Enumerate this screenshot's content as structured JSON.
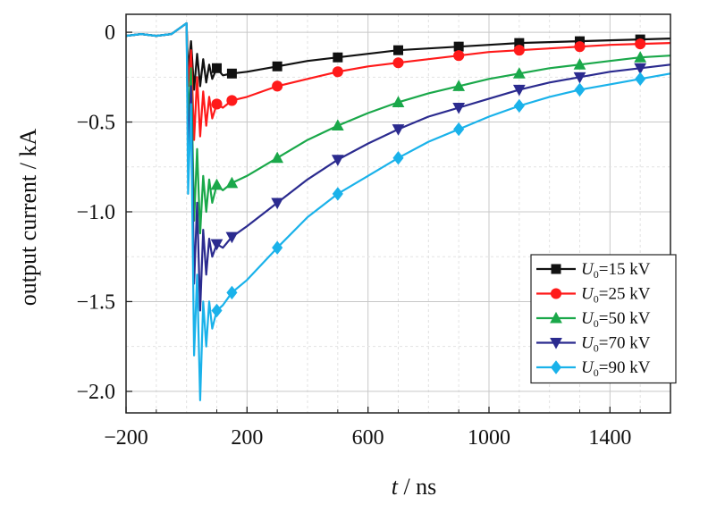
{
  "chart_data": {
    "type": "line",
    "xlabel": {
      "italic": "t",
      "rest": " / ns"
    },
    "ylabel": "output current / kA",
    "xlim": [
      -200,
      1600
    ],
    "ylim": [
      -2.12,
      0.1
    ],
    "x_ticks": [
      -200,
      200,
      600,
      1000,
      1400
    ],
    "x_tick_labels": [
      "−200",
      "200",
      "600",
      "1000",
      "1400"
    ],
    "y_ticks": [
      0,
      -0.5,
      -1.0,
      -1.5,
      -2.0
    ],
    "y_tick_labels": [
      "0",
      "−0.5",
      "−1.0",
      "−1.5",
      "−2.0"
    ],
    "grid": true,
    "legend_position": "bottom-right",
    "series": [
      {
        "name": "U0=15 kV",
        "legend_var": "U",
        "legend_sub": "0",
        "legend_rest": "=15 kV",
        "color": "#111111",
        "marker": "square",
        "x": [
          -200,
          -150,
          -100,
          -50,
          0,
          5,
          15,
          25,
          35,
          45,
          55,
          65,
          75,
          85,
          100,
          120,
          150,
          200,
          300,
          400,
          500,
          600,
          700,
          800,
          900,
          1000,
          1100,
          1200,
          1300,
          1400,
          1500,
          1600
        ],
        "y": [
          -0.02,
          -0.01,
          -0.02,
          -0.01,
          0.05,
          -0.22,
          -0.05,
          -0.32,
          -0.12,
          -0.3,
          -0.15,
          -0.28,
          -0.18,
          -0.26,
          -0.2,
          -0.24,
          -0.23,
          -0.22,
          -0.19,
          -0.16,
          -0.14,
          -0.12,
          -0.1,
          -0.09,
          -0.08,
          -0.07,
          -0.06,
          -0.055,
          -0.05,
          -0.045,
          -0.04,
          -0.035
        ]
      },
      {
        "name": "U0=25 kV",
        "legend_var": "U",
        "legend_sub": "0",
        "legend_rest": "=25 kV",
        "color": "#ff1a1a",
        "marker": "circle",
        "x": [
          -200,
          -150,
          -100,
          -50,
          0,
          5,
          15,
          25,
          35,
          45,
          55,
          65,
          75,
          85,
          100,
          120,
          150,
          200,
          300,
          400,
          500,
          600,
          700,
          800,
          900,
          1000,
          1100,
          1200,
          1300,
          1400,
          1500,
          1600
        ],
        "y": [
          -0.02,
          -0.01,
          -0.02,
          -0.01,
          0.05,
          -0.3,
          -0.1,
          -0.6,
          -0.25,
          -0.58,
          -0.33,
          -0.52,
          -0.36,
          -0.48,
          -0.4,
          -0.42,
          -0.38,
          -0.36,
          -0.3,
          -0.26,
          -0.22,
          -0.19,
          -0.17,
          -0.15,
          -0.13,
          -0.11,
          -0.1,
          -0.09,
          -0.08,
          -0.07,
          -0.065,
          -0.06
        ]
      },
      {
        "name": "U0=50 kV",
        "legend_var": "U",
        "legend_sub": "0",
        "legend_rest": "=50 kV",
        "color": "#1aa84a",
        "marker": "triangle-up",
        "x": [
          -200,
          -150,
          -100,
          -50,
          0,
          5,
          15,
          25,
          35,
          45,
          55,
          65,
          75,
          85,
          100,
          120,
          150,
          200,
          300,
          400,
          500,
          600,
          700,
          800,
          900,
          1000,
          1100,
          1200,
          1300,
          1400,
          1500,
          1600
        ],
        "y": [
          -0.02,
          -0.01,
          -0.02,
          -0.01,
          0.05,
          -0.5,
          -0.2,
          -1.05,
          -0.65,
          -1.12,
          -0.8,
          -1.0,
          -0.82,
          -0.95,
          -0.85,
          -0.88,
          -0.84,
          -0.8,
          -0.7,
          -0.6,
          -0.52,
          -0.45,
          -0.39,
          -0.34,
          -0.3,
          -0.26,
          -0.23,
          -0.2,
          -0.18,
          -0.16,
          -0.14,
          -0.13
        ]
      },
      {
        "name": "U0=70 kV",
        "legend_var": "U",
        "legend_sub": "0",
        "legend_rest": "=70 kV",
        "color": "#2b2b8f",
        "marker": "triangle-down",
        "x": [
          -200,
          -150,
          -100,
          -50,
          0,
          5,
          15,
          25,
          35,
          45,
          55,
          65,
          75,
          85,
          100,
          120,
          150,
          200,
          300,
          400,
          500,
          600,
          700,
          800,
          900,
          1000,
          1100,
          1200,
          1300,
          1400,
          1500,
          1600
        ],
        "y": [
          -0.02,
          -0.01,
          -0.02,
          -0.01,
          0.05,
          -0.7,
          -0.3,
          -1.4,
          -0.95,
          -1.55,
          -1.1,
          -1.35,
          -1.15,
          -1.25,
          -1.18,
          -1.2,
          -1.14,
          -1.08,
          -0.95,
          -0.82,
          -0.71,
          -0.62,
          -0.54,
          -0.47,
          -0.42,
          -0.37,
          -0.32,
          -0.28,
          -0.25,
          -0.22,
          -0.2,
          -0.18
        ]
      },
      {
        "name": "U0=90 kV",
        "legend_var": "U",
        "legend_sub": "0",
        "legend_rest": "=90 kV",
        "color": "#1ab2ea",
        "marker": "diamond",
        "x": [
          -200,
          -150,
          -100,
          -50,
          0,
          5,
          15,
          25,
          35,
          45,
          55,
          65,
          75,
          85,
          100,
          120,
          150,
          200,
          300,
          400,
          500,
          600,
          700,
          800,
          900,
          1000,
          1100,
          1200,
          1300,
          1400,
          1500,
          1600
        ],
        "y": [
          -0.02,
          -0.01,
          -0.02,
          -0.01,
          0.05,
          -0.9,
          -0.4,
          -1.8,
          -1.35,
          -2.05,
          -1.5,
          -1.75,
          -1.5,
          -1.65,
          -1.55,
          -1.52,
          -1.45,
          -1.38,
          -1.2,
          -1.03,
          -0.9,
          -0.8,
          -0.7,
          -0.61,
          -0.54,
          -0.47,
          -0.41,
          -0.36,
          -0.32,
          -0.29,
          -0.26,
          -0.23
        ]
      }
    ]
  }
}
